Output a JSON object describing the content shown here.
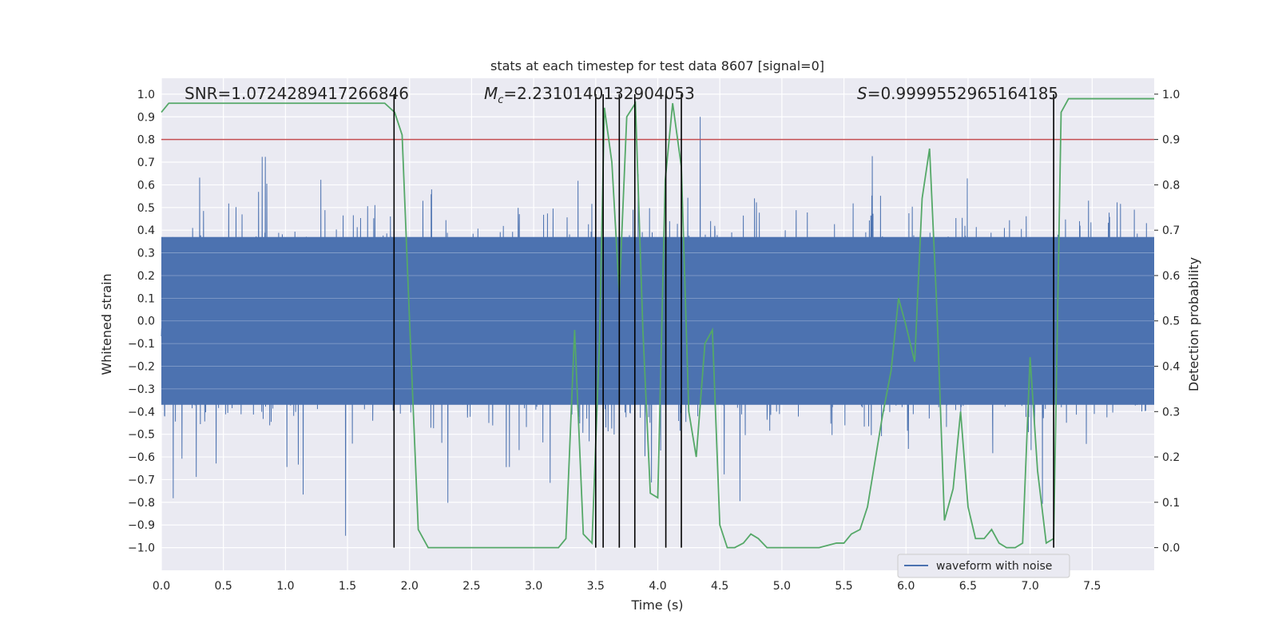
{
  "chart_data": {
    "type": "line",
    "title": "stats at each timestep for test data 8607 [signal=0]",
    "xlabel": "Time (s)",
    "ylabel_left": "Whitened strain",
    "ylabel_right": "Detection probability",
    "xlim": [
      0.0,
      8.0
    ],
    "ylim_left": [
      -1.1,
      1.07
    ],
    "ylim_right": [
      -0.05,
      1.035
    ],
    "x_ticks": [
      "0.0",
      "0.5",
      "1.0",
      "1.5",
      "2.0",
      "2.5",
      "3.0",
      "3.5",
      "4.0",
      "4.5",
      "5.0",
      "5.5",
      "6.0",
      "6.5",
      "7.0",
      "7.5"
    ],
    "x_tick_values": [
      0.0,
      0.5,
      1.0,
      1.5,
      2.0,
      2.5,
      3.0,
      3.5,
      4.0,
      4.5,
      5.0,
      5.5,
      6.0,
      6.5,
      7.0,
      7.5
    ],
    "y_left_ticks": [
      "1.0",
      "0.9",
      "0.8",
      "0.7",
      "0.6",
      "0.5",
      "0.4",
      "0.3",
      "0.2",
      "0.1",
      "0.0",
      "−0.1",
      "−0.2",
      "−0.3",
      "−0.4",
      "−0.5",
      "−0.6",
      "−0.7",
      "−0.8",
      "−0.9",
      "−1.0"
    ],
    "y_left_tick_values": [
      1.0,
      0.9,
      0.8,
      0.7,
      0.6,
      0.5,
      0.4,
      0.3,
      0.2,
      0.1,
      0.0,
      -0.1,
      -0.2,
      -0.3,
      -0.4,
      -0.5,
      -0.6,
      -0.7,
      -0.8,
      -0.9,
      -1.0
    ],
    "y_right_ticks": [
      "1.0",
      "0.9",
      "0.8",
      "0.7",
      "0.6",
      "0.5",
      "0.4",
      "0.3",
      "0.2",
      "0.1",
      "0.0"
    ],
    "y_right_tick_values": [
      1.0,
      0.9,
      0.8,
      0.7,
      0.6,
      0.5,
      0.4,
      0.3,
      0.2,
      0.1,
      0.0
    ],
    "annotations": {
      "snr": "SNR=1.0724289417266846",
      "mc_symbol": "M",
      "mc_subscript": "c",
      "mc_value": "=2.2310140132904053",
      "s_symbol": "S",
      "s_value": "=0.9999552965164185"
    },
    "threshold": {
      "value": 0.9,
      "axis": "right",
      "color": "#c44e52"
    },
    "vertical_lines": [
      1.875,
      3.5,
      3.56,
      3.69,
      3.815,
      4.065,
      4.19,
      7.19
    ],
    "vertical_line_range": [
      -1.0,
      1.0
    ],
    "legend": {
      "label": "waveform with noise",
      "location": "lower right"
    },
    "series": [
      {
        "name": "waveform with noise",
        "color": "#4c72b0",
        "axis": "left",
        "kind": "noise",
        "samples": 4096,
        "envelope": {
          "core": 0.37,
          "max": 0.9,
          "min": -1.0
        }
      },
      {
        "name": "Detection probability",
        "color": "#55a868",
        "axis": "right",
        "x": [
          0.0,
          0.06,
          0.12,
          0.5,
          1.0,
          1.5,
          1.8,
          1.88,
          1.94,
          2.0,
          2.07,
          2.15,
          2.25,
          2.5,
          3.0,
          3.2,
          3.26,
          3.33,
          3.4,
          3.47,
          3.53,
          3.57,
          3.63,
          3.69,
          3.75,
          3.82,
          3.88,
          3.94,
          4.0,
          4.06,
          4.12,
          4.19,
          4.25,
          4.31,
          4.38,
          4.44,
          4.5,
          4.56,
          4.62,
          4.69,
          4.75,
          4.81,
          4.88,
          5.0,
          5.3,
          5.44,
          5.5,
          5.56,
          5.63,
          5.69,
          5.75,
          5.81,
          5.88,
          5.94,
          6.0,
          6.07,
          6.13,
          6.19,
          6.25,
          6.31,
          6.38,
          6.44,
          6.5,
          6.56,
          6.63,
          6.69,
          6.75,
          6.81,
          6.88,
          6.94,
          7.0,
          7.06,
          7.13,
          7.19,
          7.25,
          7.31,
          7.5,
          7.7,
          7.78,
          7.85,
          8.0
        ],
        "values": [
          0.96,
          0.98,
          0.98,
          0.98,
          0.98,
          0.98,
          0.98,
          0.96,
          0.91,
          0.5,
          0.04,
          0.0,
          0.0,
          0.0,
          0.0,
          0.0,
          0.02,
          0.48,
          0.03,
          0.01,
          0.45,
          0.97,
          0.85,
          0.56,
          0.95,
          0.98,
          0.48,
          0.12,
          0.11,
          0.81,
          0.98,
          0.84,
          0.3,
          0.2,
          0.45,
          0.48,
          0.05,
          0.0,
          0.0,
          0.01,
          0.03,
          0.02,
          0.0,
          0.0,
          0.0,
          0.01,
          0.01,
          0.03,
          0.04,
          0.09,
          0.19,
          0.29,
          0.39,
          0.55,
          0.49,
          0.41,
          0.77,
          0.88,
          0.52,
          0.06,
          0.13,
          0.3,
          0.09,
          0.02,
          0.02,
          0.04,
          0.01,
          0.0,
          0.0,
          0.01,
          0.42,
          0.17,
          0.01,
          0.02,
          0.96,
          0.99,
          0.99,
          0.99,
          0.99,
          0.99,
          0.99
        ]
      }
    ]
  }
}
